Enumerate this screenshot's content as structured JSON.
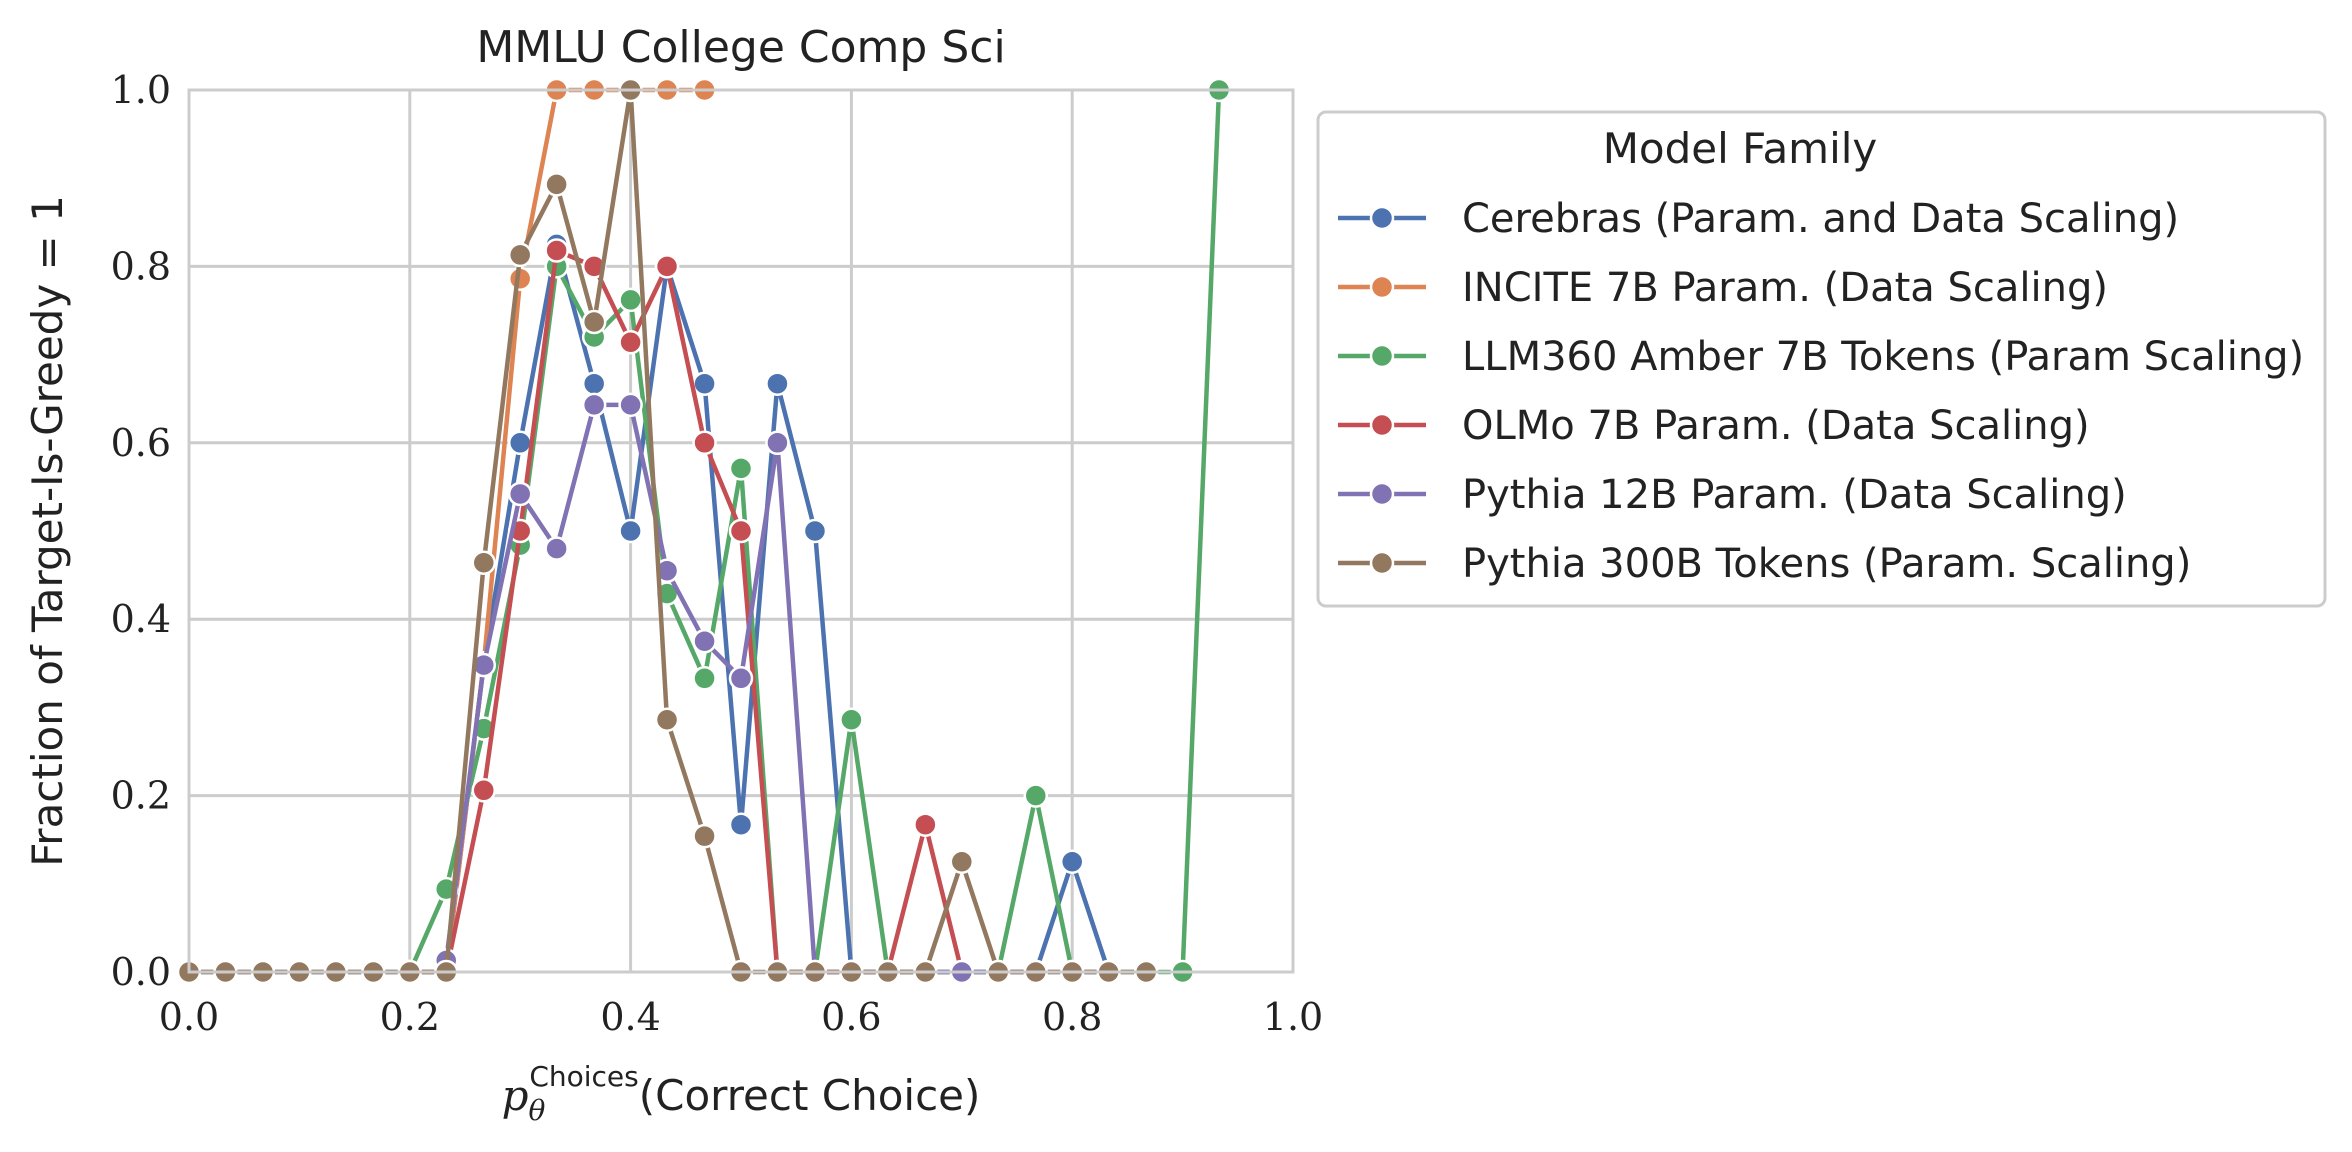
{
  "chart_data": {
    "type": "line",
    "title": "MMLU College Comp Sci",
    "xlabel": {
      "prefix": "p",
      "subscript": "θ",
      "superscript": "Choices",
      "suffix": "(Correct Choice)"
    },
    "ylabel": "Fraction of Target-Is-Greedy = 1",
    "xlim": [
      0.0,
      1.0
    ],
    "ylim": [
      0.0,
      1.0
    ],
    "xticks": [
      "0.0",
      "0.2",
      "0.4",
      "0.6",
      "0.8",
      "1.0"
    ],
    "yticks": [
      "0.0",
      "0.2",
      "0.4",
      "0.6",
      "0.8",
      "1.0"
    ],
    "grid": true,
    "markers": true,
    "legend": {
      "title": "Model Family",
      "placement": "outside right, upper"
    },
    "series": [
      {
        "name": "Cerebras (Param. and Data Scaling)",
        "color": "#4c72b0",
        "x": [
          0.0,
          0.2,
          0.233,
          0.267,
          0.3,
          0.333,
          0.367,
          0.4,
          0.433,
          0.467,
          0.5,
          0.533,
          0.567,
          0.6,
          0.633,
          0.667,
          0.7,
          0.733,
          0.767,
          0.8,
          0.833
        ],
        "y": [
          0.0,
          0.0,
          0.0,
          0.35,
          0.6,
          0.825,
          0.667,
          0.5,
          0.8,
          0.667,
          0.167,
          0.667,
          0.5,
          0.0,
          0.0,
          0.0,
          0.0,
          0.0,
          0.0,
          0.125,
          0.0
        ]
      },
      {
        "name": "INCITE 7B Param. (Data Scaling)",
        "color": "#dd8452",
        "x": [
          0.2,
          0.233,
          0.267,
          0.3,
          0.333,
          0.367,
          0.4,
          0.433,
          0.467
        ],
        "y": [
          0.0,
          0.0,
          0.35,
          0.786,
          1.0,
          1.0,
          1.0,
          1.0,
          1.0
        ]
      },
      {
        "name": "LLM360 Amber 7B Tokens (Param Scaling)",
        "color": "#55a868",
        "x": [
          0.2,
          0.233,
          0.267,
          0.3,
          0.333,
          0.367,
          0.4,
          0.433,
          0.467,
          0.5,
          0.533,
          0.567,
          0.6,
          0.633,
          0.667,
          0.7,
          0.733,
          0.767,
          0.8,
          0.833,
          0.867,
          0.9,
          0.933
        ],
        "y": [
          0.0,
          0.094,
          0.276,
          0.484,
          0.8,
          0.72,
          0.762,
          0.429,
          0.333,
          0.571,
          0.0,
          0.0,
          0.286,
          0.0,
          0.0,
          0.0,
          0.0,
          0.2,
          0.0,
          0.0,
          0.0,
          0.0,
          1.0
        ]
      },
      {
        "name": "OLMo 7B Param. (Data Scaling)",
        "color": "#c44e52",
        "x": [
          0.233,
          0.267,
          0.3,
          0.333,
          0.367,
          0.4,
          0.433,
          0.467,
          0.5,
          0.533,
          0.567,
          0.6,
          0.633,
          0.667,
          0.7
        ],
        "y": [
          0.0,
          0.206,
          0.5,
          0.818,
          0.8,
          0.714,
          0.8,
          0.6,
          0.5,
          0.0,
          0.0,
          0.0,
          0.0,
          0.167,
          0.0
        ]
      },
      {
        "name": "Pythia 12B Param. (Data Scaling)",
        "color": "#8172b3",
        "x": [
          0.233,
          0.267,
          0.3,
          0.333,
          0.367,
          0.4,
          0.433,
          0.467,
          0.5,
          0.533,
          0.567,
          0.6,
          0.633,
          0.667,
          0.7,
          0.733,
          0.767,
          0.8,
          0.833
        ],
        "y": [
          0.013,
          0.348,
          0.542,
          0.48,
          0.643,
          0.643,
          0.455,
          0.375,
          0.333,
          0.6,
          0.0,
          0.0,
          0.0,
          0.0,
          0.0,
          0.0,
          0.0,
          0.0,
          0.0
        ]
      },
      {
        "name": "Pythia 300B Tokens (Param. Scaling)",
        "color": "#937860",
        "x": [
          0.0,
          0.033,
          0.067,
          0.1,
          0.133,
          0.167,
          0.2,
          0.233,
          0.267,
          0.3,
          0.333,
          0.367,
          0.4,
          0.433,
          0.467,
          0.5,
          0.533,
          0.567,
          0.6,
          0.633,
          0.667,
          0.7,
          0.733,
          0.767,
          0.8,
          0.833,
          0.867
        ],
        "y": [
          0.0,
          0.0,
          0.0,
          0.0,
          0.0,
          0.0,
          0.0,
          0.0,
          0.464,
          0.813,
          0.893,
          0.737,
          1.0,
          0.286,
          0.154,
          0.0,
          0.0,
          0.0,
          0.0,
          0.0,
          0.0,
          0.125,
          0.0,
          0.0,
          0.0,
          0.0,
          0.0
        ]
      }
    ]
  }
}
